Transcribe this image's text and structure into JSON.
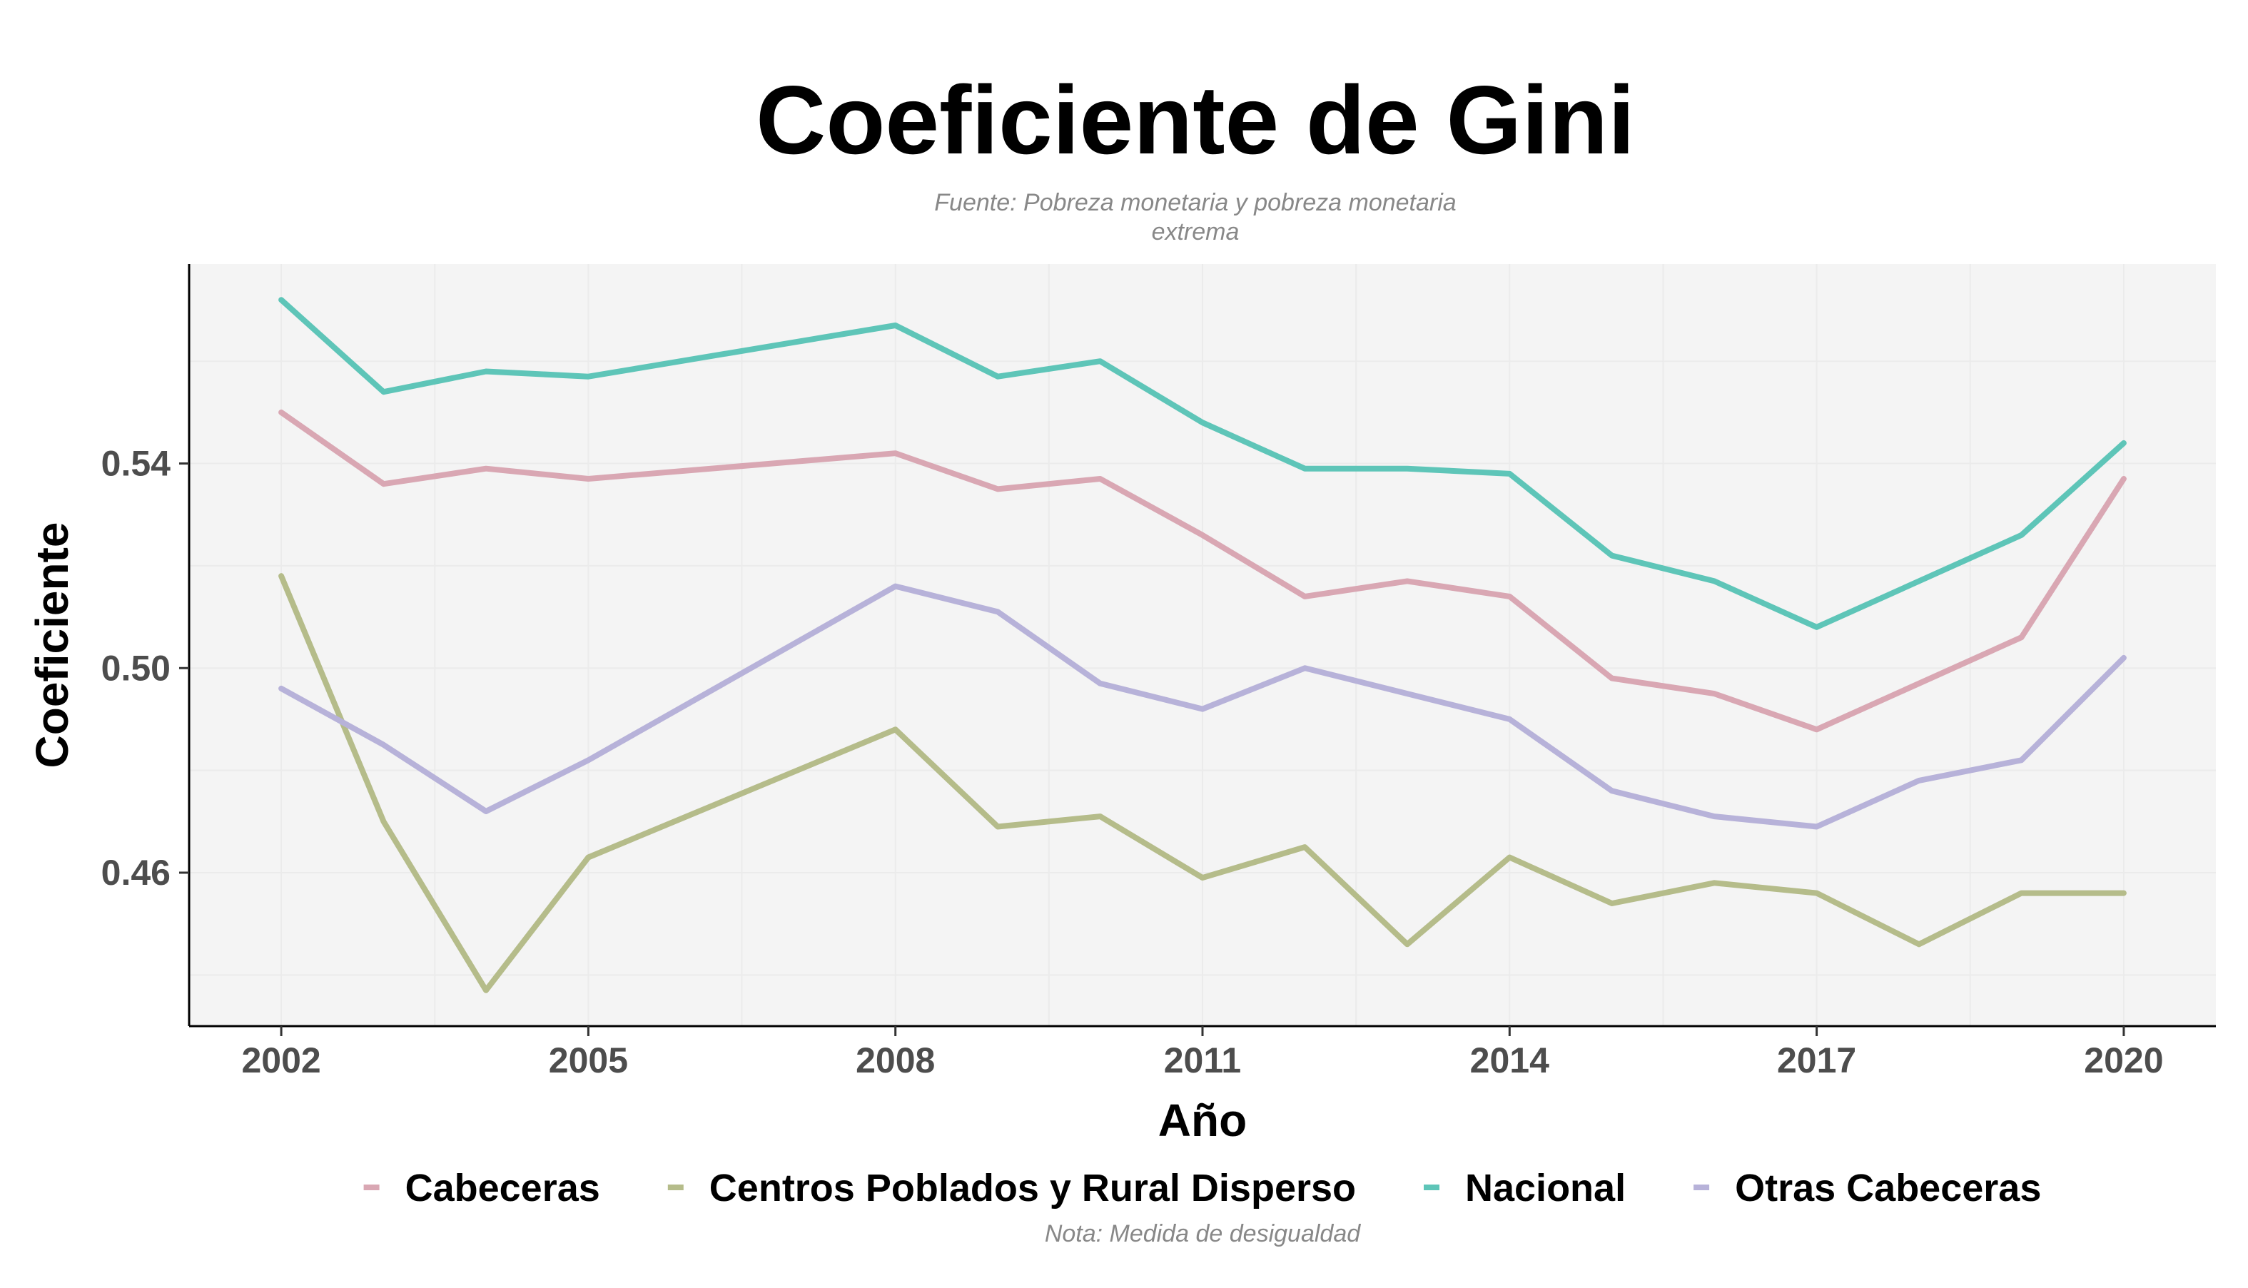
{
  "chart_data": {
    "type": "line",
    "title": "Coeficiente de Gini",
    "subtitle_lines": [
      "Fuente: Pobreza monetaria y pobreza monetaria",
      "extrema"
    ],
    "xlabel": "Año",
    "ylabel": "Coeficiente",
    "caption": "Nota: Medida de desigualdad",
    "x": [
      2002,
      2003,
      2004,
      2005,
      2008,
      2009,
      2010,
      2011,
      2012,
      2013,
      2014,
      2015,
      2016,
      2017,
      2018,
      2019,
      2020
    ],
    "x_ticks": [
      2002,
      2005,
      2008,
      2011,
      2014,
      2017,
      2020
    ],
    "y_ticks": [
      0.46,
      0.5,
      0.54
    ],
    "y_tick_labels": [
      "0.46",
      "0.50",
      "0.54"
    ],
    "xlim": [
      2001.1,
      2020.9
    ],
    "ylim": [
      0.43,
      0.579
    ],
    "grid": true,
    "legend_position": "bottom",
    "series": [
      {
        "name": "Cabeceras",
        "color": "#d9a7b3",
        "values": [
          0.55,
          0.536,
          0.539,
          0.537,
          0.542,
          0.535,
          0.537,
          0.526,
          0.514,
          0.517,
          0.514,
          0.498,
          0.495,
          0.488,
          0.497,
          0.506,
          0.537
        ]
      },
      {
        "name": "Centros Poblados y Rural Disperso",
        "color": "#b5bc8a",
        "values": [
          0.518,
          0.47,
          0.437,
          0.463,
          0.488,
          0.469,
          0.471,
          0.459,
          0.465,
          0.446,
          0.463,
          0.454,
          0.458,
          0.456,
          0.446,
          0.456,
          0.456
        ]
      },
      {
        "name": "Nacional",
        "color": "#5ec5b8",
        "values": [
          0.572,
          0.554,
          0.558,
          0.557,
          0.567,
          0.557,
          0.56,
          0.548,
          0.539,
          0.539,
          0.538,
          0.522,
          0.517,
          0.508,
          0.517,
          0.526,
          0.544
        ]
      },
      {
        "name": "Otras Cabeceras",
        "color": "#b7b2d9",
        "values": [
          0.496,
          0.485,
          0.472,
          0.482,
          0.516,
          0.511,
          0.497,
          0.492,
          0.5,
          0.495,
          0.49,
          0.476,
          0.471,
          0.469,
          0.478,
          0.482,
          0.502
        ]
      }
    ]
  }
}
